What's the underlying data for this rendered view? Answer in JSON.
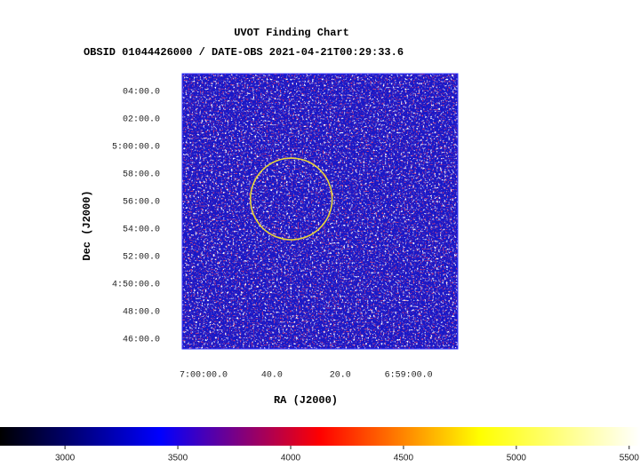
{
  "chart_data": {
    "type": "image",
    "title": "UVOT Finding Chart",
    "subtitle": "OBSID 01044426000 / DATE-OBS 2021-04-21T00:29:33.6",
    "xlabel": "RA (J2000)",
    "ylabel": "Dec (J2000)",
    "xlim": [
      105.026,
      104.69
    ],
    "ylim": [
      4.755,
      5.088
    ],
    "xticks": [
      {
        "value": 105.0,
        "label": "7:00:00.0"
      },
      {
        "value": 104.9167,
        "label": "40.0"
      },
      {
        "value": 104.8333,
        "label": "20.0"
      },
      {
        "value": 104.75,
        "label": "6:59:00.0"
      }
    ],
    "yticks": [
      {
        "value": 5.0667,
        "label": "04:00.0"
      },
      {
        "value": 5.0333,
        "label": "02:00.0"
      },
      {
        "value": 5.0,
        "label": "5:00:00.0"
      },
      {
        "value": 4.9667,
        "label": "58:00.0"
      },
      {
        "value": 4.9333,
        "label": "56:00.0"
      },
      {
        "value": 4.9,
        "label": "54:00.0"
      },
      {
        "value": 4.8667,
        "label": "52:00.0"
      },
      {
        "value": 4.8333,
        "label": "4:50:00.0"
      },
      {
        "value": 4.8,
        "label": "48:00.0"
      },
      {
        "value": 4.7667,
        "label": "46:00.0"
      }
    ],
    "region": {
      "ra": 104.893,
      "dec": 4.9365,
      "radius": 0.0494,
      "color": "#e8d43a"
    },
    "colorbar": {
      "clim": [
        2712,
        5548
      ],
      "ticks": [
        3000,
        3500,
        4000,
        4500,
        5000,
        5500
      ],
      "colormap": [
        "#000000",
        "#0000ff",
        "#ff0000",
        "#ffff00",
        "#ffffff"
      ]
    }
  }
}
